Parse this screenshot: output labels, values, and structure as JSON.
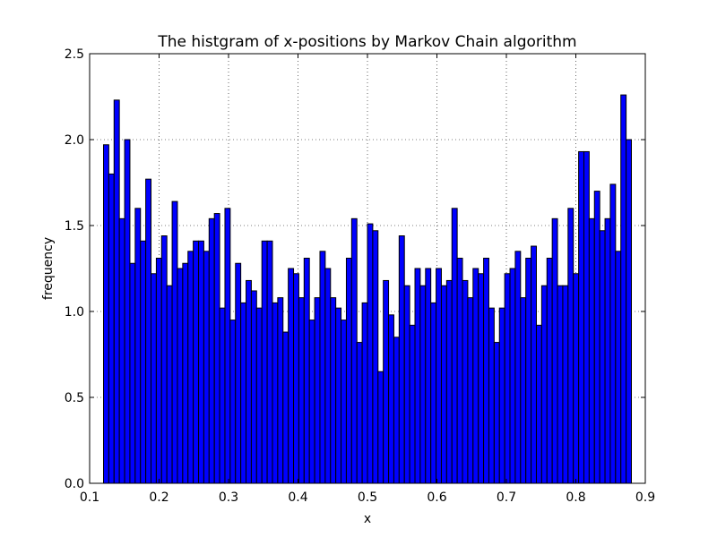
{
  "chart_data": {
    "type": "bar",
    "title": "The histgram of x-positions by Markov Chain algorithm",
    "xlabel": "x",
    "ylabel": "frequency",
    "xlim": [
      0.1,
      0.9
    ],
    "ylim": [
      0.0,
      2.5
    ],
    "grid": true,
    "bar_color": "#0000ff",
    "bin_start": 0.12,
    "bin_width": 0.0076,
    "xticks": [
      "0.1",
      "0.2",
      "0.3",
      "0.4",
      "0.5",
      "0.6",
      "0.7",
      "0.8",
      "0.9"
    ],
    "xtick_values": [
      0.1,
      0.2,
      0.3,
      0.4,
      0.5,
      0.6,
      0.7,
      0.8,
      0.9
    ],
    "yticks": [
      "0.0",
      "0.5",
      "1.0",
      "1.5",
      "2.0",
      "2.5"
    ],
    "ytick_values": [
      0.0,
      0.5,
      1.0,
      1.5,
      2.0,
      2.5
    ],
    "values": [
      1.97,
      1.8,
      2.23,
      1.54,
      2.0,
      1.28,
      1.6,
      1.41,
      1.77,
      1.22,
      1.31,
      1.44,
      1.15,
      1.64,
      1.25,
      1.28,
      1.35,
      1.41,
      1.41,
      1.35,
      1.54,
      1.57,
      1.02,
      1.6,
      0.95,
      1.28,
      1.05,
      1.18,
      1.12,
      1.02,
      1.41,
      1.41,
      1.05,
      1.08,
      0.88,
      1.25,
      1.22,
      1.08,
      1.31,
      0.95,
      1.08,
      1.35,
      1.25,
      1.08,
      1.02,
      0.95,
      1.31,
      1.54,
      0.82,
      1.05,
      1.51,
      1.47,
      0.65,
      1.18,
      0.98,
      0.85,
      1.44,
      1.15,
      0.92,
      1.25,
      1.15,
      1.25,
      1.05,
      1.25,
      1.15,
      1.18,
      1.6,
      1.31,
      1.18,
      1.08,
      1.25,
      1.22,
      1.31,
      1.02,
      0.82,
      1.02,
      1.22,
      1.25,
      1.35,
      1.08,
      1.31,
      1.38,
      0.92,
      1.15,
      1.31,
      1.54,
      1.15,
      1.15,
      1.6,
      1.22,
      1.93,
      1.93,
      1.54,
      1.7,
      1.47,
      1.54,
      1.74,
      1.35,
      2.26,
      2.0
    ]
  }
}
